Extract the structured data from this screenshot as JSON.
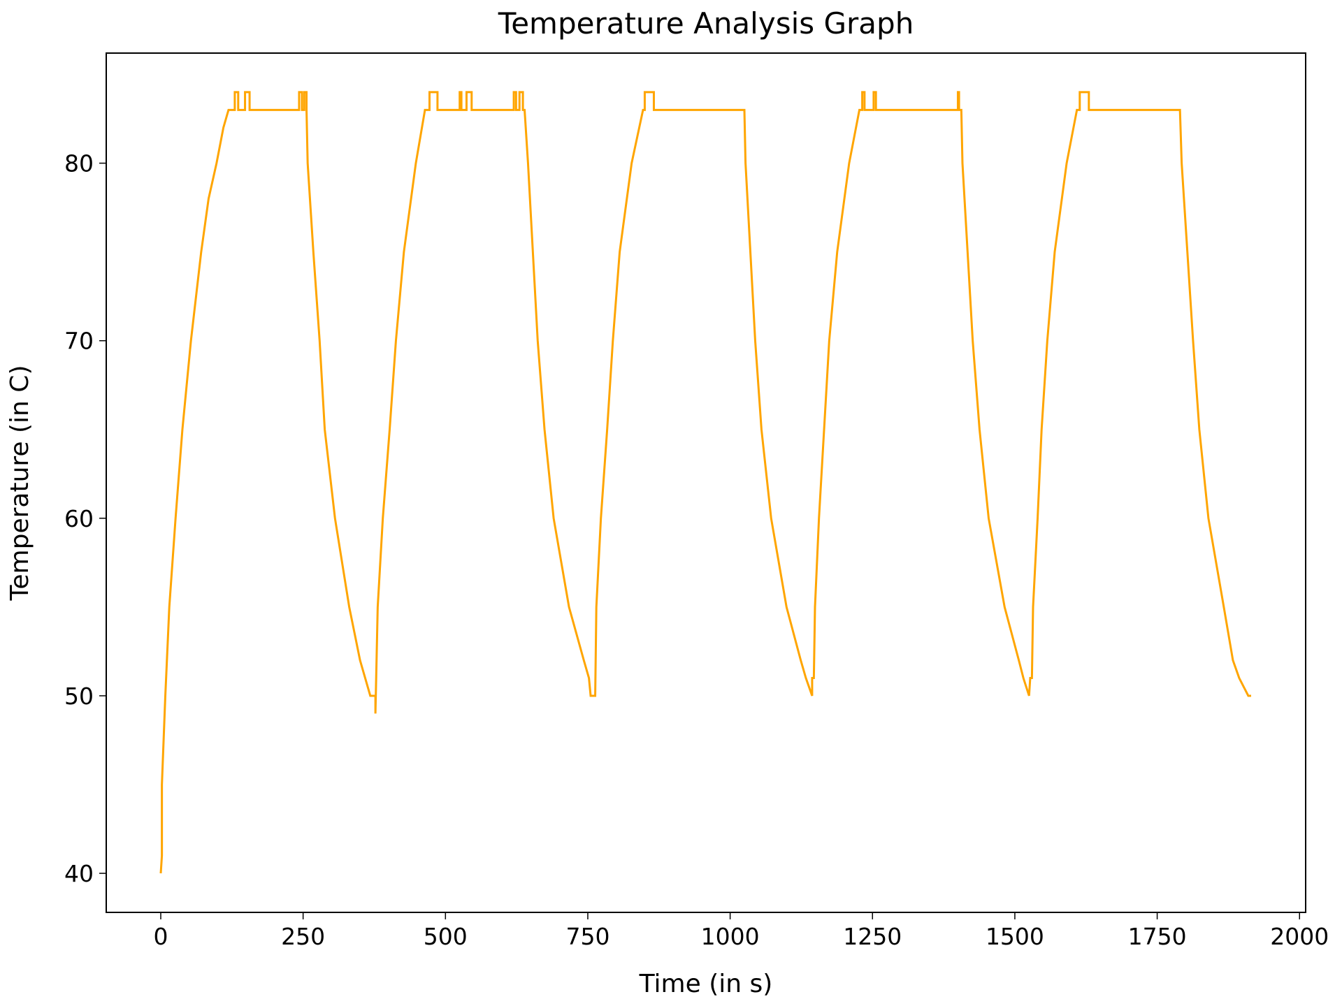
{
  "chart_data": {
    "type": "line",
    "title": "Temperature Analysis Graph",
    "x_label": "Time (in s)",
    "y_label": "Temperature (in C)",
    "color": "#ffa500",
    "x": [
      0,
      2,
      2,
      8,
      15,
      26,
      38,
      53,
      71,
      84,
      98,
      110,
      119,
      130,
      130,
      136,
      136,
      148,
      148,
      156,
      156,
      243,
      243,
      248,
      248,
      252,
      252,
      256,
      256,
      258,
      268,
      279,
      288,
      306,
      331,
      350,
      359,
      368,
      377,
      377,
      381,
      390,
      402,
      413,
      427,
      448,
      464,
      472,
      472,
      486,
      486,
      525,
      525,
      528,
      528,
      537,
      537,
      546,
      546,
      620,
      620,
      624,
      624,
      630,
      630,
      636,
      636,
      639,
      645,
      662,
      674,
      690,
      717,
      743,
      752,
      755,
      763,
      765,
      773,
      784,
      794,
      806,
      827,
      847,
      850,
      850,
      866,
      866,
      1025,
      1027,
      1044,
      1055,
      1072,
      1099,
      1124,
      1133,
      1144,
      1144,
      1147,
      1149,
      1156,
      1165,
      1174,
      1188,
      1209,
      1227,
      1232,
      1232,
      1236,
      1236,
      1252,
      1252,
      1256,
      1256,
      1400,
      1400,
      1402,
      1402,
      1406,
      1408,
      1426,
      1438,
      1454,
      1482,
      1507,
      1515,
      1525,
      1527,
      1530,
      1532,
      1540,
      1547,
      1557,
      1570,
      1591,
      1609,
      1614,
      1614,
      1630,
      1630,
      1790,
      1793,
      1813,
      1824,
      1840,
      1867,
      1883,
      1894,
      1910,
      1915
    ],
    "values": [
      40,
      41,
      45,
      50,
      55,
      60,
      65,
      70,
      75,
      78,
      80,
      82,
      83,
      83,
      84,
      84,
      83,
      83,
      84,
      84,
      83,
      83,
      84,
      84,
      83,
      83,
      84,
      84,
      83,
      80,
      75,
      70,
      65,
      60,
      55,
      52,
      51,
      50,
      50,
      49,
      55,
      60,
      65,
      70,
      75,
      80,
      83,
      83,
      84,
      84,
      83,
      83,
      84,
      84,
      83,
      83,
      84,
      84,
      83,
      83,
      84,
      84,
      83,
      83,
      84,
      84,
      83,
      83,
      80,
      70,
      65,
      60,
      55,
      52,
      51,
      50,
      50,
      55,
      60,
      65,
      70,
      75,
      80,
      83,
      83,
      84,
      84,
      83,
      83,
      80,
      70,
      65,
      60,
      55,
      52,
      51,
      50,
      51,
      51,
      55,
      60,
      65,
      70,
      75,
      80,
      83,
      83,
      84,
      84,
      83,
      83,
      84,
      84,
      83,
      83,
      84,
      84,
      83,
      83,
      80,
      70,
      65,
      60,
      55,
      52,
      51,
      50,
      51,
      51,
      55,
      60,
      65,
      70,
      75,
      80,
      83,
      83,
      84,
      84,
      83,
      83,
      80,
      70,
      65,
      60,
      55,
      52,
      51,
      50,
      50
    ],
    "xlim": [
      -95.75,
      2010.75
    ],
    "xticks": [
      0,
      250,
      500,
      750,
      1000,
      1250,
      1500,
      1750,
      2000
    ],
    "ylim": [
      37.8,
      86.2
    ],
    "yticks": [
      40,
      50,
      60,
      70,
      80
    ]
  }
}
